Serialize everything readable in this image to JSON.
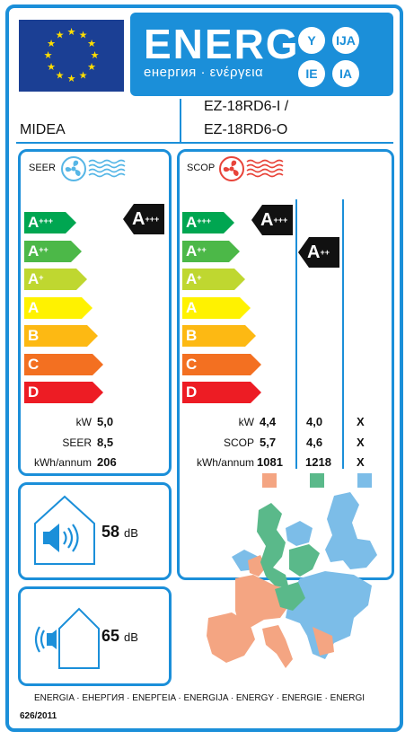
{
  "header": {
    "title": "ENERG",
    "subtitle": "енергия · ενέργεια",
    "language_badges": [
      "Y",
      "IJA",
      "IE",
      "IA"
    ]
  },
  "supplier": "MIDEA",
  "model": [
    "EZ-18RD6-I /",
    "EZ-18RD6-O"
  ],
  "class_labels": [
    "A+++",
    "A++",
    "A+",
    "A",
    "B",
    "C",
    "D"
  ],
  "class_colors": [
    "#00a651",
    "#4cb848",
    "#bfd730",
    "#fff200",
    "#fdb913",
    "#f37021",
    "#ed1c24"
  ],
  "cooling": {
    "title": "SEER",
    "rating": "A+++",
    "rows": [
      {
        "label": "kW",
        "value": "5,0"
      },
      {
        "label": "SEER",
        "value": "8,5"
      },
      {
        "label": "kWh/annum",
        "value": "206"
      }
    ]
  },
  "heating": {
    "title": "SCOP",
    "ratings": [
      "A+++",
      "A++"
    ],
    "rows": [
      {
        "label": "kW",
        "values": [
          "4,4",
          "4,0",
          "X"
        ]
      },
      {
        "label": "SCOP",
        "values": [
          "5,7",
          "4,6",
          "X"
        ]
      },
      {
        "label": "kWh/annum",
        "values": [
          "1081",
          "1218",
          "X"
        ]
      }
    ],
    "zone_colors": [
      "#f4a582",
      "#5ab98a",
      "#7cbde8"
    ]
  },
  "noise_indoor": {
    "value": "58",
    "unit": "dB"
  },
  "noise_outdoor": {
    "value": "65",
    "unit": "dB"
  },
  "footer": {
    "languages": "ENERGIA · ЕНЕРГИЯ · ΕΝΕΡΓΕΙΑ · ENERGIJA · ENERGY · ENERGIE · ENERGI",
    "regulation": "626/2011"
  }
}
